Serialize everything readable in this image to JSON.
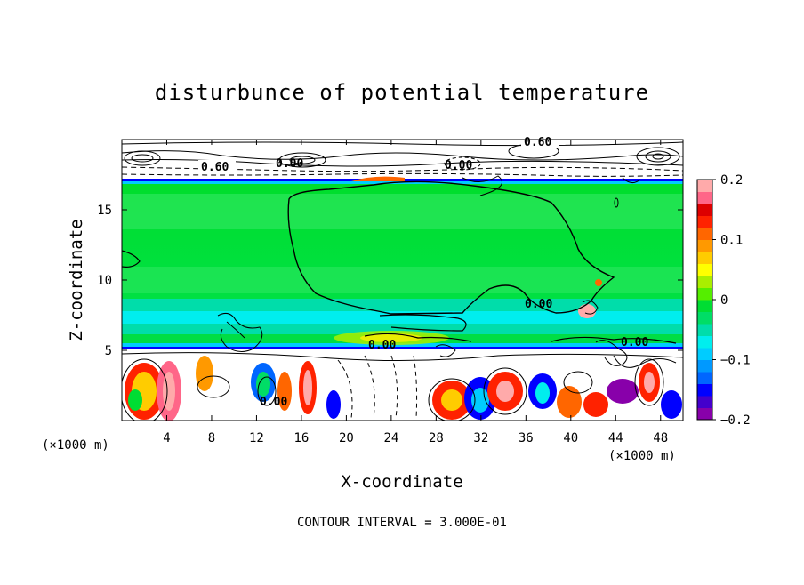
{
  "chart_data": {
    "type": "heatmap",
    "title": "disturbunce of potential temperature",
    "xlabel": "X-coordinate",
    "ylabel": "Z-coordinate",
    "x_unit": "(×1000 m)",
    "x_unit_right": "(×1000 m)",
    "xlim": [
      0,
      50
    ],
    "ylim": [
      0,
      20
    ],
    "x_ticks": [
      "4",
      "8",
      "12",
      "16",
      "20",
      "24",
      "28",
      "32",
      "36",
      "40",
      "44",
      "48"
    ],
    "y_ticks": [
      "5",
      "10",
      "15"
    ],
    "colorbar": {
      "range": [
        -0.2,
        0.2
      ],
      "tick_labels": [
        "0.2",
        "0.1",
        "0",
        "−0.1",
        "−0.2"
      ],
      "colors": [
        "#8800aa",
        "#4400cc",
        "#0000ff",
        "#0066ff",
        "#0099ff",
        "#00ccff",
        "#00eeee",
        "#00ddaa",
        "#00dd66",
        "#00dd33",
        "#55ee00",
        "#aaee00",
        "#ffff00",
        "#ffcc00",
        "#ff9900",
        "#ff6600",
        "#ff2200",
        "#dd0000",
        "#ff6688",
        "#ffaaaa"
      ]
    },
    "contour_interval_text": "CONTOUR INTERVAL = 3.000E-01",
    "contour_labels": [
      "0.60",
      "0.60",
      "0.00",
      "0.00",
      "0.00",
      "0.00",
      "0.00",
      "0.00"
    ],
    "grid": false
  }
}
